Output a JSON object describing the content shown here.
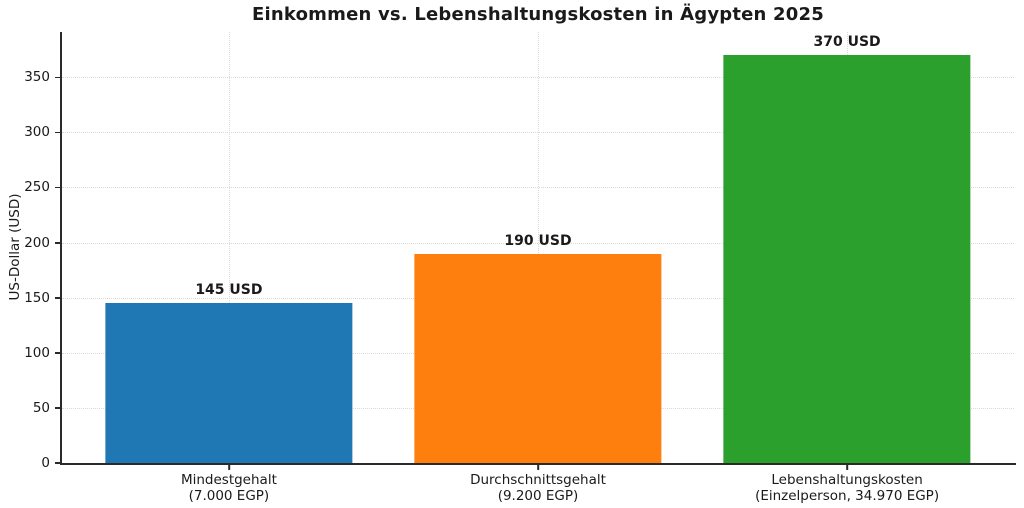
{
  "chart_data": {
    "type": "bar",
    "title": "Einkommen vs. Lebenshaltungskosten in Ägypten 2025",
    "xlabel": "",
    "ylabel": "US-Dollar (USD)",
    "categories": [
      "Mindestgehalt\n(7.000 EGP)",
      "Durchschnittsgehalt\n(9.200 EGP)",
      "Lebenshaltungskosten\n(Einzelperson, 34.970 EGP)"
    ],
    "values": [
      145,
      190,
      370
    ],
    "bar_labels": [
      "145 USD",
      "190 USD",
      "370 USD"
    ],
    "bar_colors": [
      "#1f77b4",
      "#ff7f0e",
      "#2ca02c"
    ],
    "yticks": [
      0,
      50,
      100,
      150,
      200,
      250,
      300,
      350
    ],
    "ylim": [
      0,
      391
    ],
    "grid": true,
    "legend_position": "none",
    "layout_hints": {
      "bar_width": 0.8,
      "x_margin": 0.05
    },
    "colors": {
      "axis": "#2a2a2a",
      "grid": "#d9d9d9",
      "text": "#1a1a1a",
      "background": "#ffffff"
    }
  }
}
